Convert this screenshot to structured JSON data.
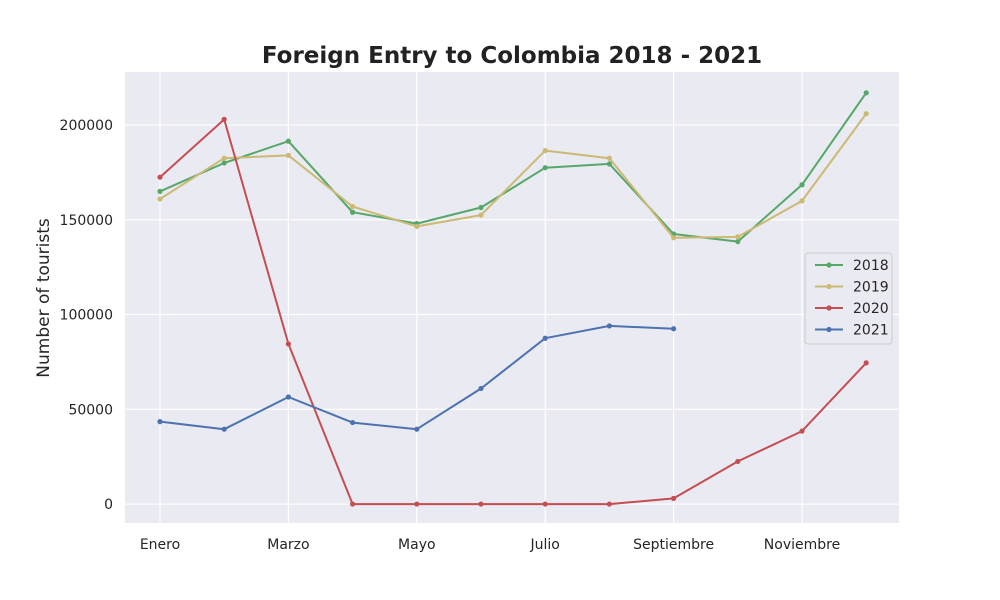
{
  "chart_data": {
    "type": "line",
    "title": "Foreign Entry to Colombia 2018 - 2021",
    "xlabel": "",
    "ylabel": "Number of tourists",
    "x_tick_labels": [
      "Enero",
      "Marzo",
      "Mayo",
      "Julio",
      "Septiembre",
      "Noviembre"
    ],
    "y_tick_values": [
      0,
      50000,
      100000,
      150000,
      200000
    ],
    "ylim": [
      -10000,
      228000
    ],
    "grid": true,
    "legend_position": "center-right",
    "series": [
      {
        "name": "2018",
        "color": "#55a868",
        "values": [
          165000,
          180000,
          191500,
          154000,
          148000,
          156500,
          177500,
          179500,
          142500,
          138500,
          168500,
          217000
        ]
      },
      {
        "name": "2019",
        "color": "#ccb974",
        "values": [
          161000,
          182500,
          184000,
          157000,
          146500,
          152500,
          186500,
          182500,
          140500,
          141000,
          160000,
          206000
        ]
      },
      {
        "name": "2020",
        "color": "#c44e52",
        "values": [
          172500,
          203000,
          84500,
          0,
          0,
          0,
          0,
          0,
          3000,
          22500,
          38500,
          74500
        ]
      },
      {
        "name": "2021",
        "color": "#4c72b0",
        "values": [
          43500,
          39500,
          56500,
          43000,
          39500,
          61000,
          87500,
          94000,
          92500,
          null,
          null,
          null
        ]
      }
    ]
  }
}
